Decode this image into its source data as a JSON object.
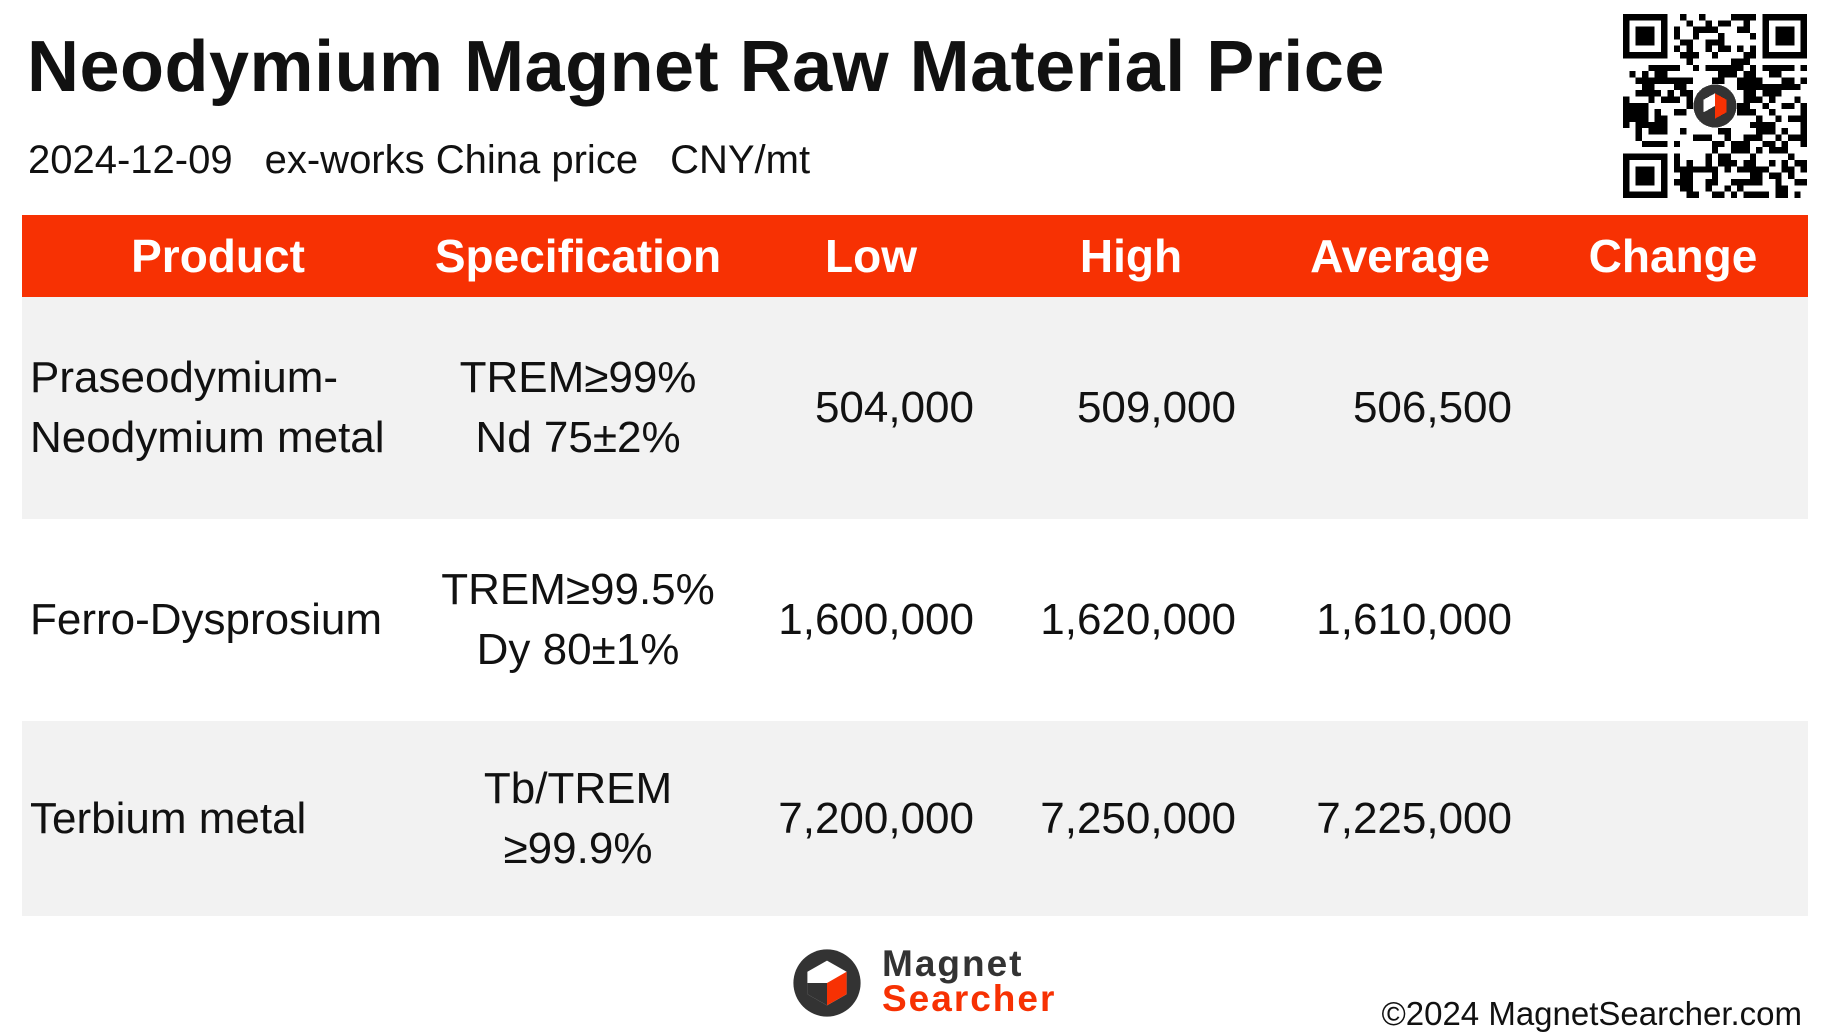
{
  "header": {
    "title": "Neodymium Magnet Raw Material Price",
    "date": "2024-12-09",
    "price_basis": "ex-works China price",
    "unit": "CNY/mt"
  },
  "table": {
    "columns": [
      "Product",
      "Specification",
      "Low",
      "High",
      "Average",
      "Change"
    ],
    "rows": [
      {
        "product_line1": "Praseodymium-",
        "product_line2": "Neodymium metal",
        "spec_line1": "TREM≥99%",
        "spec_line2": "Nd 75±2%",
        "low": "504,000",
        "high": "509,000",
        "average": "506,500",
        "change": ""
      },
      {
        "product_line1": "Ferro-Dysprosium",
        "product_line2": "",
        "spec_line1": "TREM≥99.5%",
        "spec_line2": "Dy 80±1%",
        "low": "1,600,000",
        "high": "1,620,000",
        "average": "1,610,000",
        "change": ""
      },
      {
        "product_line1": "Terbium metal",
        "product_line2": "",
        "spec_line1": "Tb/TREM",
        "spec_line2": "≥99.9%",
        "low": "7,200,000",
        "high": "7,250,000",
        "average": "7,225,000",
        "change": ""
      }
    ]
  },
  "footer": {
    "brand_line1": "Magnet",
    "brand_line2": "Searcher",
    "copyright": "©2024 MagnetSearcher.com"
  },
  "colors": {
    "accent": "#f73103",
    "row_stripe": "#f2f2f2",
    "text": "#111111"
  },
  "icons": {
    "qr": "qr-code-icon",
    "logo": "magnet-searcher-logo-icon"
  }
}
